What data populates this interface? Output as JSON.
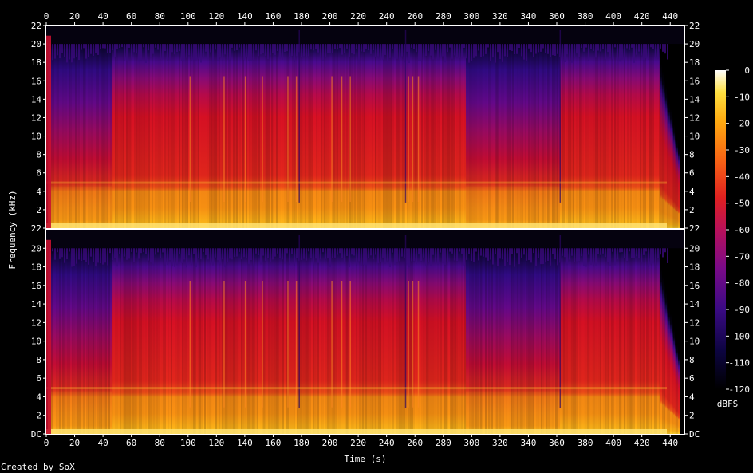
{
  "chart_data": {
    "type": "heatmap",
    "title": "",
    "xlabel": "Time (s)",
    "ylabel": "Frequency (kHz)",
    "colorbar_label": "dBFS",
    "credit": "Created by SoX",
    "xlim": [
      0,
      450
    ],
    "ylim_khz": [
      0,
      22
    ],
    "x_ticks": [
      "0",
      "20",
      "40",
      "60",
      "80",
      "100",
      "120",
      "140",
      "160",
      "180",
      "200",
      "220",
      "240",
      "260",
      "280",
      "300",
      "320",
      "340",
      "360",
      "380",
      "400",
      "420",
      "440"
    ],
    "y_ticks": [
      "DC",
      "2",
      "4",
      "6",
      "8",
      "10",
      "12",
      "14",
      "16",
      "18",
      "20",
      "22"
    ],
    "colorbar_ticks": [
      "0",
      "-10",
      "-20",
      "-30",
      "-40",
      "-50",
      "-60",
      "-70",
      "-80",
      "-90",
      "-100",
      "-110",
      "-120"
    ],
    "colorbar_range_dbfs": [
      -120,
      0
    ],
    "channels": 2,
    "colors": {
      "background": "#000000",
      "frame": "#ffffff",
      "text": "#ffffff"
    }
  }
}
